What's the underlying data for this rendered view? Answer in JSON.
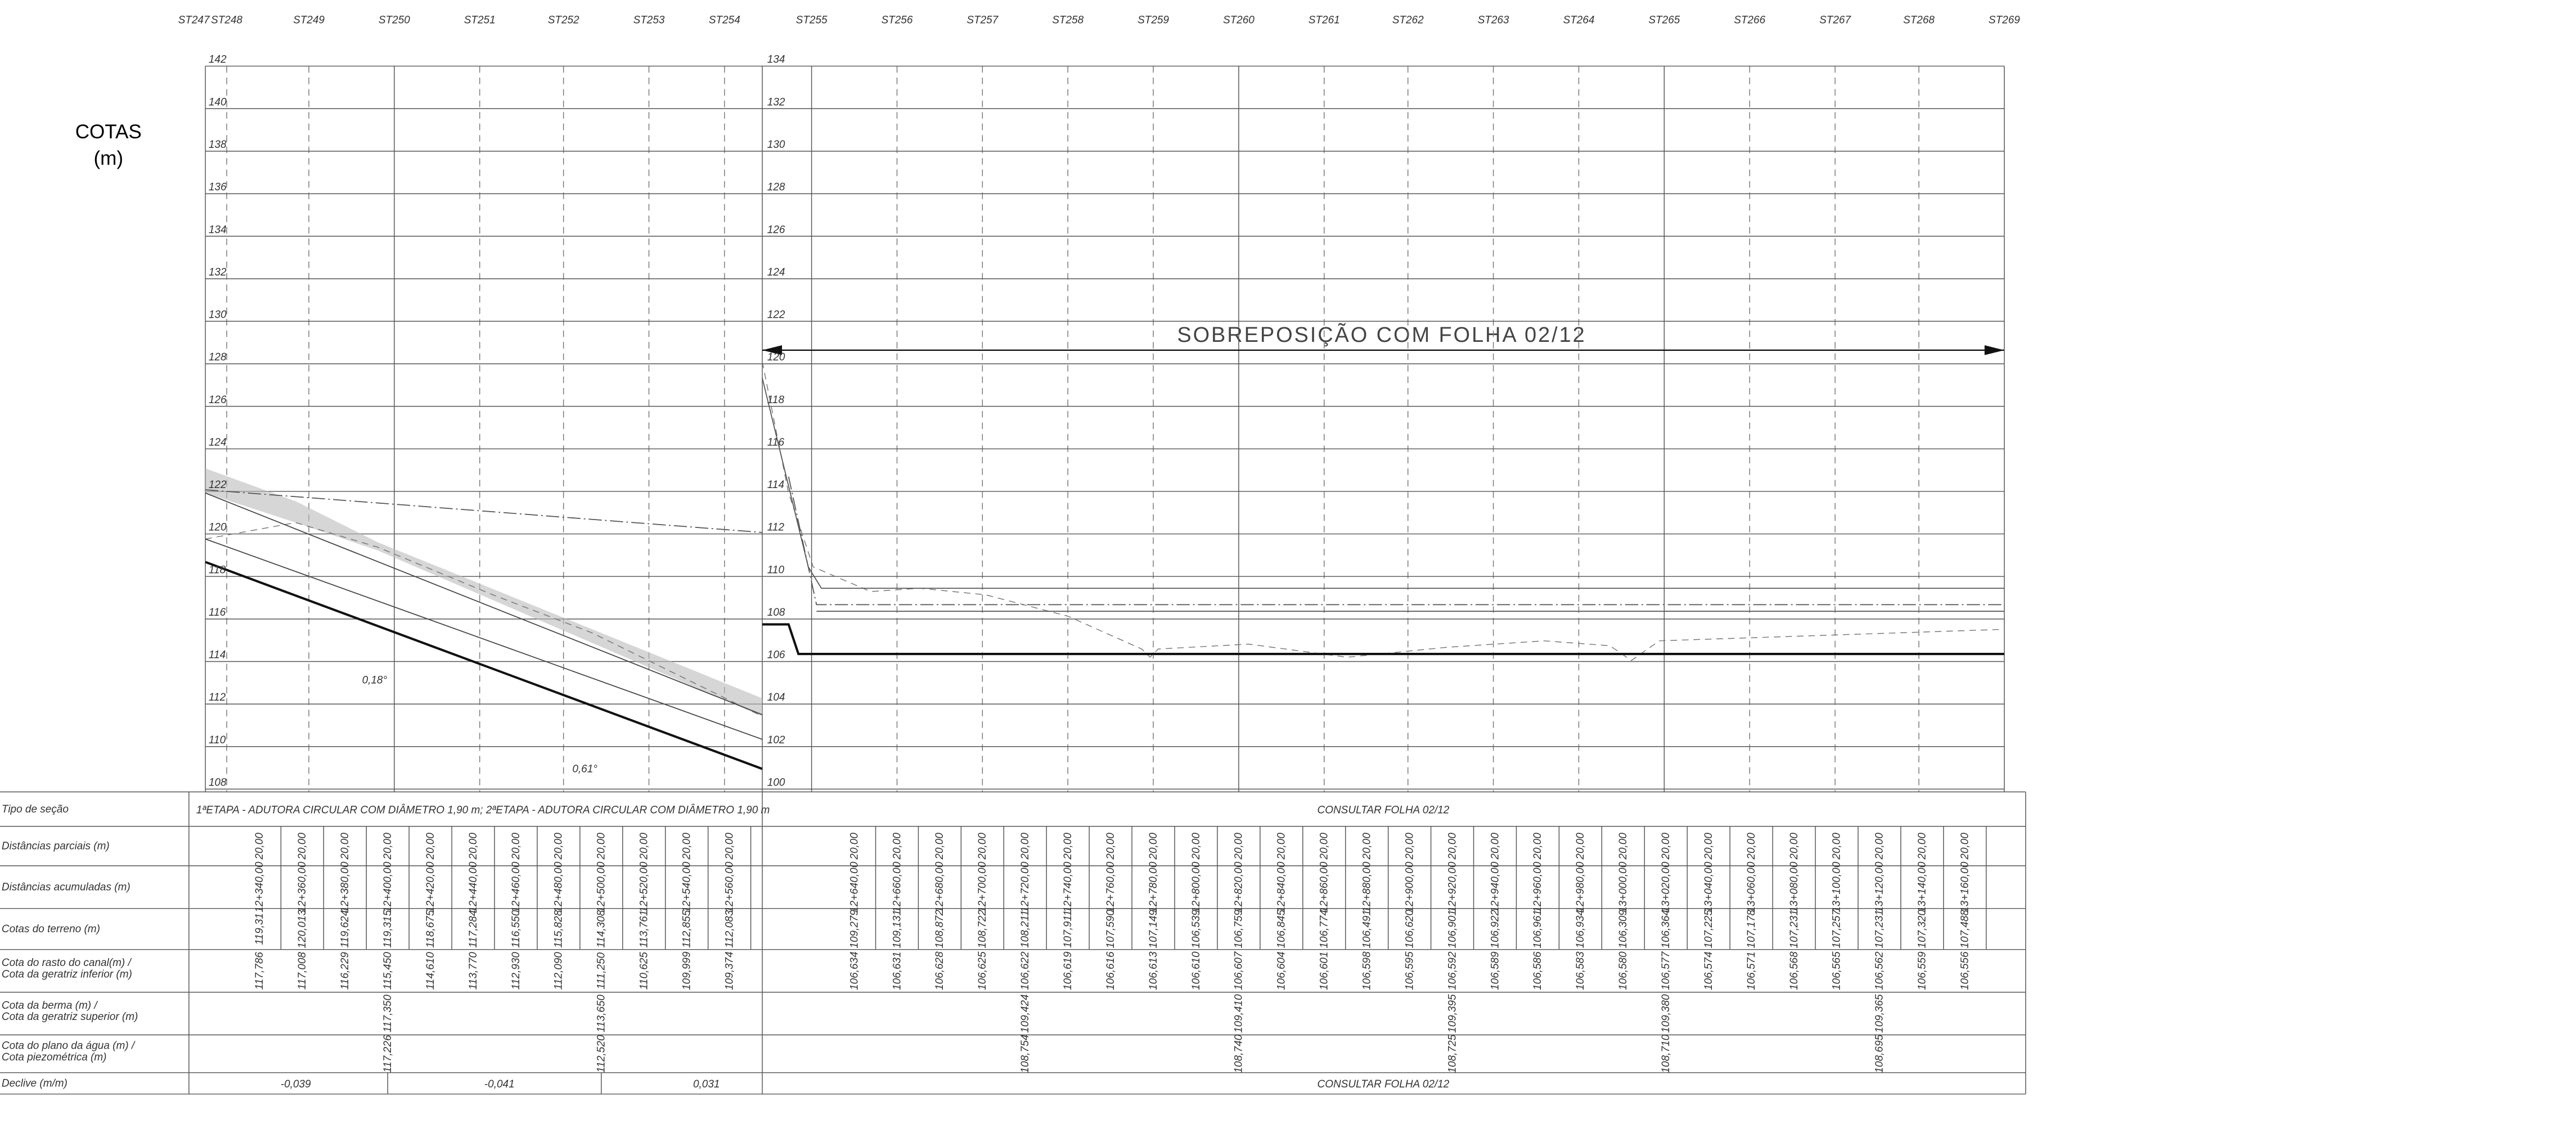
{
  "header": {
    "stations": [
      "ST247",
      "ST248",
      "ST249",
      "ST250",
      "ST251",
      "ST252",
      "ST253",
      "ST254",
      "ST255",
      "ST256",
      "ST257",
      "ST258",
      "ST259",
      "ST260",
      "ST261",
      "ST262",
      "ST263",
      "ST264",
      "ST265",
      "ST266",
      "ST267",
      "ST268",
      "ST269"
    ]
  },
  "cotas_label": [
    "COTAS",
    "(m)"
  ],
  "left_axis": [
    "142",
    "140",
    "138",
    "136",
    "134",
    "132",
    "130",
    "128",
    "126",
    "124",
    "122",
    "120",
    "118",
    "116",
    "114",
    "112",
    "110",
    "108"
  ],
  "right_axis": [
    "134",
    "132",
    "130",
    "128",
    "126",
    "124",
    "122",
    "120",
    "118",
    "116",
    "114",
    "112",
    "110",
    "108",
    "106",
    "104",
    "102",
    "100"
  ],
  "overlay": "SOBREPOSIÇÃO COM FOLHA 02/12",
  "slope_notes": [
    "0,18°",
    "0,61°"
  ],
  "table": {
    "row_labels": [
      "Tipo de seção",
      "Distâncias parciais (m)",
      "Distâncias acumuladas (m)",
      "Cotas do terreno (m)",
      "Cota do rasto do canal(m) /",
      "Cota da geratriz inferior (m)",
      "Cota da berma (m) /",
      "Cota da geratriz superior (m)",
      "Cota do plano da água (m) /",
      "Cota piezométrica (m)",
      "Declive (m/m)"
    ],
    "section_left": "1ªETAPA - ADUTORA CIRCULAR COM DIÂMETRO 1,90 m; 2ªETAPA - ADUTORA CIRCULAR COM DIÂMETRO 1,90 m",
    "section_right": "CONSULTAR FOLHA 02/12",
    "declive": [
      "-0,039",
      "-0,041",
      "0,031",
      "CONSULTAR FOLHA 02/12"
    ],
    "left": {
      "parcial": [
        "20,00",
        "20,00",
        "20,00",
        "20,00",
        "20,00",
        "20,00",
        "20,00",
        "20,00",
        "20,00",
        "20,00",
        "20,00",
        "20,00"
      ],
      "accum": [
        "12+340,00",
        "12+360,00",
        "12+380,00",
        "12+400,00",
        "12+420,00",
        "12+440,00",
        "12+460,00",
        "12+480,00",
        "12+500,00",
        "12+520,00",
        "12+540,00",
        "12+560,00"
      ],
      "terreno": [
        "119,31",
        "120,013",
        "119,624",
        "119,315",
        "118,675",
        "117,284",
        "116,550",
        "115,828",
        "114,308",
        "113,761",
        "112,855",
        "112,083"
      ],
      "canal": [
        "117,786",
        "117,008",
        "116,229",
        "115,450",
        "114,610",
        "113,770",
        "112,930",
        "112,090",
        "111,250",
        "110,625",
        "109,999",
        "109,374"
      ],
      "berma": [
        null,
        null,
        null,
        "117,350",
        null,
        null,
        null,
        null,
        "113,650",
        null,
        null,
        null
      ],
      "agua": [
        null,
        null,
        null,
        "117,226",
        null,
        null,
        null,
        null,
        "112,520",
        null,
        null,
        null
      ]
    },
    "right": {
      "parcial": [
        "20,00",
        "20,00",
        "20,00",
        "20,00",
        "20,00",
        "20,00",
        "20,00",
        "20,00",
        "20,00",
        "20,00",
        "20,00",
        "20,00",
        "20,00",
        "20,00",
        "20,00",
        "20,00",
        "20,00",
        "20,00",
        "20,00",
        "20,00",
        "20,00",
        "20,00",
        "20,00",
        "20,00",
        "20,00",
        "20,00",
        "20,00"
      ],
      "accum": [
        "12+640,00",
        "12+660,00",
        "12+680,00",
        "12+700,00",
        "12+720,00",
        "12+740,00",
        "12+760,00",
        "12+780,00",
        "12+800,00",
        "12+820,00",
        "12+840,00",
        "12+860,00",
        "12+880,00",
        "12+900,00",
        "12+920,00",
        "12+940,00",
        "12+960,00",
        "12+980,00",
        "13+000,00",
        "13+020,00",
        "13+040,00",
        "13+060,00",
        "13+080,00",
        "13+100,00",
        "13+120,00",
        "13+140,00",
        "13+160,00"
      ],
      "terreno": [
        "109,279",
        "109,131",
        "108,872",
        "108,722",
        "108,211",
        "107,911",
        "107,590",
        "107,149",
        "106,539",
        "106,759",
        "106,845",
        "106,774",
        "106,491",
        "106,620",
        "106,901",
        "106,922",
        "106,961",
        "106,934",
        "106,309",
        "106,364",
        "107,225",
        "107,178",
        "107,231",
        "107,257",
        "107,231",
        "107,320",
        "107,488"
      ],
      "canal": [
        "106,634",
        "106,631",
        "106,628",
        "106,625",
        "106,622",
        "106,619",
        "106,616",
        "106,613",
        "106,610",
        "106,607",
        "106,604",
        "106,601",
        "106,598",
        "106,595",
        "106,592",
        "106,589",
        "106,586",
        "106,583",
        "106,580",
        "106,577",
        "106,574",
        "106,571",
        "106,568",
        "106,565",
        "106,562",
        "106,559",
        "106,556"
      ],
      "berma": [
        null,
        null,
        null,
        null,
        "109,424",
        null,
        null,
        null,
        null,
        "109,410",
        null,
        null,
        null,
        null,
        "109,395",
        null,
        null,
        null,
        null,
        "109,380",
        null,
        null,
        null,
        null,
        "109,365",
        null,
        null
      ],
      "agua": [
        null,
        null,
        null,
        null,
        "108,754",
        null,
        null,
        null,
        null,
        "108,740",
        null,
        null,
        null,
        null,
        "108,725",
        null,
        null,
        null,
        null,
        "108,710",
        null,
        null,
        null,
        null,
        "108,695",
        null,
        null
      ]
    }
  }
}
